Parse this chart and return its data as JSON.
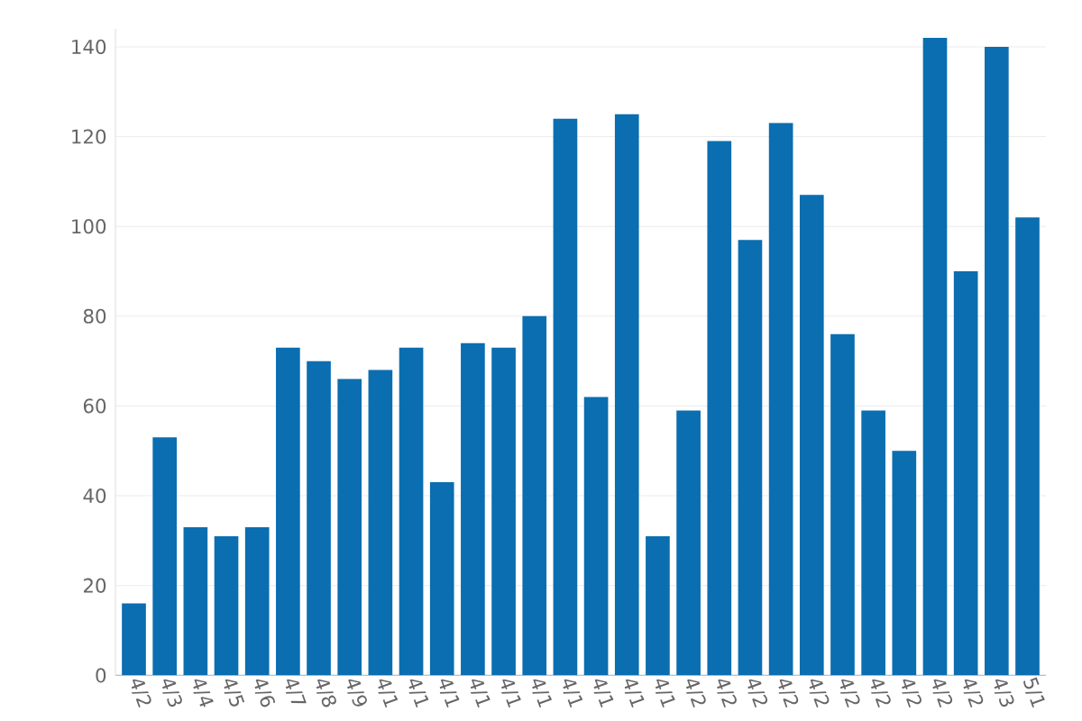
{
  "chart_data": {
    "type": "bar",
    "categories": [
      "4/2",
      "4/3",
      "4/4",
      "4/5",
      "4/6",
      "4/7",
      "4/8",
      "4/9",
      "4/1",
      "4/1",
      "4/1",
      "4/1",
      "4/1",
      "4/1",
      "4/1",
      "4/1",
      "4/1",
      "4/1",
      "4/2",
      "4/2",
      "4/2",
      "4/2",
      "4/2",
      "4/2",
      "4/2",
      "4/2",
      "4/2",
      "4/2",
      "4/3",
      "5/1"
    ],
    "values": [
      16,
      53,
      33,
      31,
      33,
      73,
      70,
      66,
      68,
      73,
      43,
      74,
      73,
      80,
      124,
      62,
      125,
      31,
      59,
      119,
      97,
      123,
      107,
      76,
      59,
      50,
      142,
      90,
      140,
      102
    ],
    "color": "#0a6eb0",
    "ylim": [
      0,
      144
    ],
    "yticks": [
      0,
      20,
      40,
      60,
      80,
      100,
      120,
      140
    ],
    "grid": "y"
  }
}
